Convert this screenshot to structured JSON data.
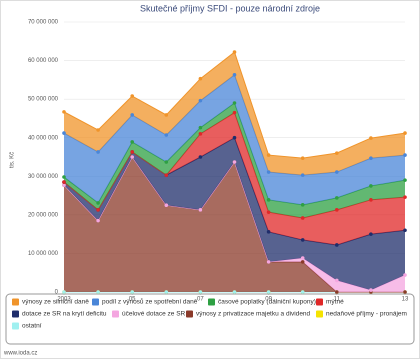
{
  "chart_data": {
    "type": "stacked_area",
    "title": "Skutečné příjmy SFDI - pouze národní zdroje",
    "y_label": "tis. Kč",
    "footer": "www.ioda.cz",
    "x": [
      2003,
      2004,
      2005,
      2006,
      2007,
      2008,
      2009,
      2010,
      2011,
      2012,
      2013
    ],
    "xlim": [
      2003,
      2013
    ],
    "xticks": [
      2003,
      {
        "value": 2005,
        "label": "05"
      },
      {
        "value": 2007,
        "label": "07"
      },
      {
        "value": 2009,
        "label": "09"
      },
      {
        "value": 2011,
        "label": "11"
      },
      {
        "value": 2013,
        "label": "13"
      }
    ],
    "ylim": [
      0,
      70000000
    ],
    "yticks": [
      {
        "value": 0,
        "label": "0"
      },
      {
        "value": 10000000,
        "label": "10 000 000"
      },
      {
        "value": 20000000,
        "label": "20 000 000"
      },
      {
        "value": 30000000,
        "label": "30 000 000"
      },
      {
        "value": 40000000,
        "label": "40 000 000"
      },
      {
        "value": 50000000,
        "label": "50 000 000"
      },
      {
        "value": 60000000,
        "label": "60 000 000"
      },
      {
        "value": 70000000,
        "label": "70 000 000"
      }
    ],
    "grid": true,
    "series": [
      {
        "name": "výnosy ze silniční daně",
        "color": "#f0942a",
        "values": [
          5500000,
          5700000,
          4900000,
          5200000,
          5700000,
          5900000,
          4400000,
          4400000,
          4900000,
          5200000,
          5700000
        ]
      },
      {
        "name": "podíl z výnosů ze spotřební daně",
        "color": "#4a86d8",
        "values": [
          11400000,
          13200000,
          7000000,
          7000000,
          7000000,
          7300000,
          7200000,
          7700000,
          6700000,
          7200000,
          6500000
        ]
      },
      {
        "name": "časové poplatky (dálniční kupony)",
        "color": "#2ea043",
        "values": [
          1300000,
          1800000,
          2600000,
          3400000,
          1600000,
          2500000,
          3200000,
          3400000,
          3100000,
          3600000,
          4400000
        ]
      },
      {
        "name": "mýtné",
        "color": "#e02828",
        "values": [
          0,
          0,
          0,
          0,
          6000000,
          6500000,
          5100000,
          5700000,
          9100000,
          8900000,
          8600000
        ]
      },
      {
        "name": "dotace ze SR na krytí deficitu",
        "color": "#1f2d6b",
        "values": [
          800000,
          2800000,
          1300000,
          7800000,
          13700000,
          6300000,
          7800000,
          4700000,
          9200000,
          14500000,
          11600000
        ]
      },
      {
        "name": "účelové dotace ze SR",
        "color": "#f4a6e0",
        "values": [
          0,
          0,
          0,
          0,
          0,
          0,
          0,
          1000000,
          3000000,
          500000,
          4400000
        ]
      },
      {
        "name": "výnosy z privatizace majetku a dividend",
        "color": "#8b3a2a",
        "values": [
          27700000,
          18500000,
          35000000,
          22500000,
          21300000,
          33700000,
          7800000,
          7800000,
          0,
          0,
          0
        ]
      },
      {
        "name": "nedaňové příjmy - pronájem",
        "color": "#f5e300",
        "values": [
          0,
          0,
          0,
          0,
          0,
          0,
          0,
          0,
          0,
          0,
          0
        ]
      },
      {
        "name": "ostatní",
        "color": "#a0f0f0",
        "values": [
          0,
          0,
          0,
          0,
          0,
          0,
          0,
          0,
          0,
          0,
          0
        ]
      }
    ]
  }
}
